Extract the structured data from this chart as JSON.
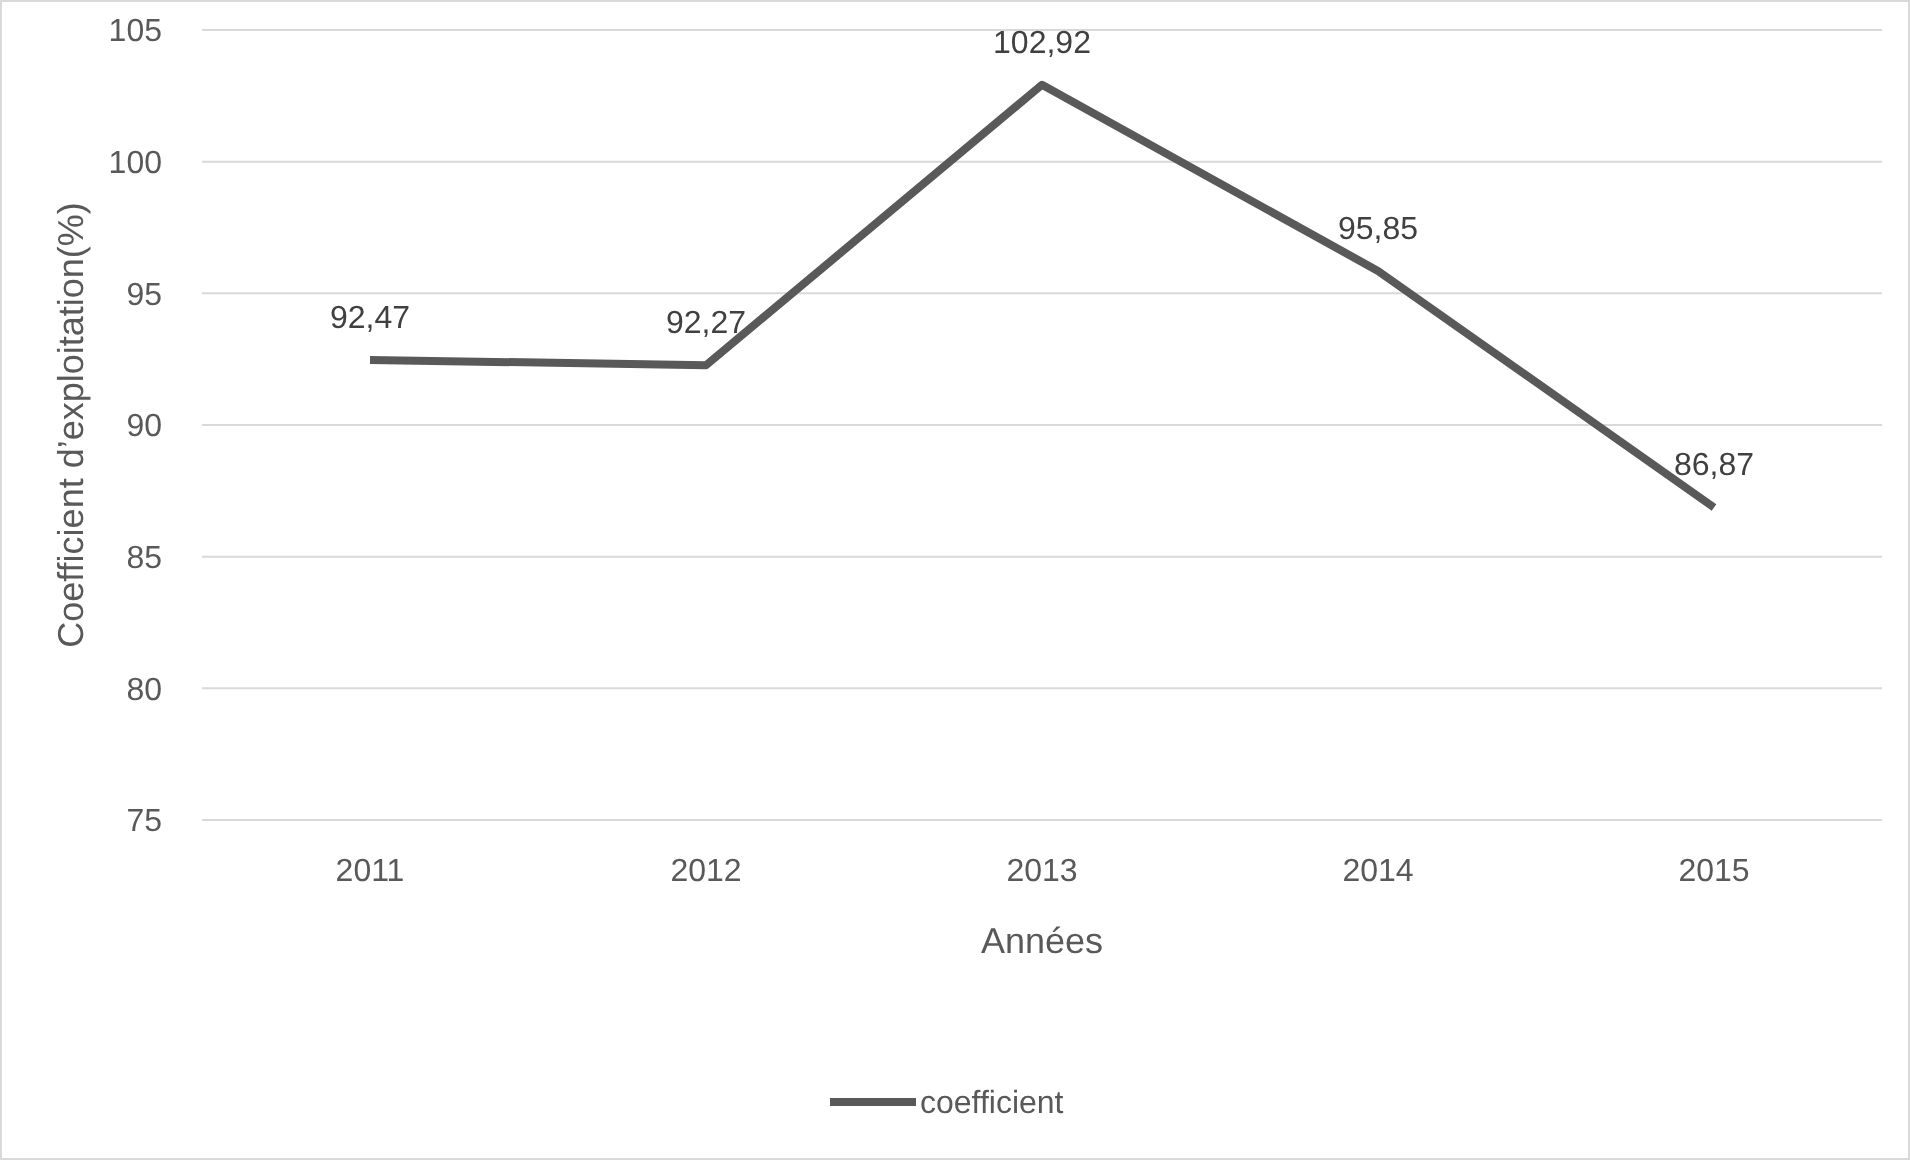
{
  "chart_data": {
    "type": "line",
    "xlabel": "Années",
    "ylabel": "Coefficient d’exploitation(%)",
    "categories": [
      "2011",
      "2012",
      "2013",
      "2014",
      "2015"
    ],
    "series": [
      {
        "name": "coefficient",
        "color": "#595959",
        "values": [
          92.47,
          92.27,
          102.92,
          95.85,
          86.87
        ],
        "value_labels": [
          "92,47",
          "92,27",
          "102,92",
          "95,85",
          "86,87"
        ]
      }
    ],
    "ylim": [
      75,
      105
    ],
    "yticks": [
      75,
      80,
      85,
      90,
      95,
      100,
      105
    ],
    "grid": "y",
    "legend": "bottom",
    "marker": "none",
    "line_style": "solid"
  }
}
